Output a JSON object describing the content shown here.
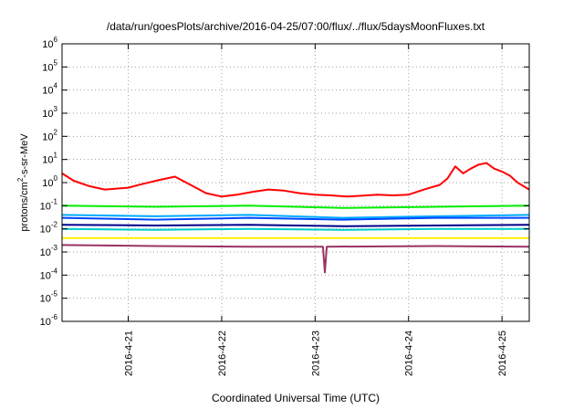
{
  "chart_data": {
    "type": "line",
    "title": "/data/run/goesPlots/archive/2016-04-25/07:00/flux/../flux/5daysMoonFluxes.txt",
    "xlabel": "Coordinated Universal Time (UTC)",
    "ylabel": "protons/cm2-s-sr-MeV",
    "ylabel_parts": [
      "protons/cm",
      "2",
      "-s-sr-MeV"
    ],
    "yscale": "log",
    "ylim": [
      1e-06,
      1000000.0
    ],
    "y_ticks": [
      {
        "value": 1e-06,
        "base": "10",
        "exp": "-6"
      },
      {
        "value": 1e-05,
        "base": "10",
        "exp": "-5"
      },
      {
        "value": 0.0001,
        "base": "10",
        "exp": "-4"
      },
      {
        "value": 0.001,
        "base": "10",
        "exp": "-3"
      },
      {
        "value": 0.01,
        "base": "10",
        "exp": "-2"
      },
      {
        "value": 0.1,
        "base": "10",
        "exp": "-1"
      },
      {
        "value": 1,
        "base": "10",
        "exp": "0"
      },
      {
        "value": 10,
        "base": "10",
        "exp": "1"
      },
      {
        "value": 100,
        "base": "10",
        "exp": "2"
      },
      {
        "value": 1000,
        "base": "10",
        "exp": "3"
      },
      {
        "value": 10000,
        "base": "10",
        "exp": "4"
      },
      {
        "value": 100000,
        "base": "10",
        "exp": "5"
      },
      {
        "value": 1000000,
        "base": "10",
        "exp": "6"
      }
    ],
    "xlim": [
      "2016-04-20T07:00",
      "2016-04-25T07:00"
    ],
    "x_ticks": [
      {
        "value": "2016-04-21T00:00",
        "label": "2016-4-21"
      },
      {
        "value": "2016-04-22T00:00",
        "label": "2016-4-22"
      },
      {
        "value": "2016-04-23T00:00",
        "label": "2016-4-23"
      },
      {
        "value": "2016-04-24T00:00",
        "label": "2016-4-24"
      },
      {
        "value": "2016-04-25T00:00",
        "label": "2016-4-25"
      }
    ],
    "grid": true,
    "series": [
      {
        "color": "#ff0000",
        "x": [
          "2016-04-20T07:00",
          "2016-04-20T10:00",
          "2016-04-20T14:00",
          "2016-04-20T18:00",
          "2016-04-21T00:00",
          "2016-04-21T04:00",
          "2016-04-21T08:00",
          "2016-04-21T12:00",
          "2016-04-21T16:00",
          "2016-04-21T20:00",
          "2016-04-22T00:00",
          "2016-04-22T04:00",
          "2016-04-22T08:00",
          "2016-04-22T12:00",
          "2016-04-22T16:00",
          "2016-04-22T20:00",
          "2016-04-23T00:00",
          "2016-04-23T04:00",
          "2016-04-23T08:00",
          "2016-04-23T12:00",
          "2016-04-23T16:00",
          "2016-04-23T20:00",
          "2016-04-24T00:00",
          "2016-04-24T04:00",
          "2016-04-24T08:00",
          "2016-04-24T10:00",
          "2016-04-24T12:00",
          "2016-04-24T14:00",
          "2016-04-24T16:00",
          "2016-04-24T18:00",
          "2016-04-24T20:00",
          "2016-04-24T22:00",
          "2016-04-25T00:00",
          "2016-04-25T02:00",
          "2016-04-25T04:00",
          "2016-04-25T07:00"
        ],
        "values": [
          2.5,
          1.2,
          0.7,
          0.5,
          0.6,
          0.9,
          1.3,
          1.8,
          0.8,
          0.35,
          0.25,
          0.3,
          0.4,
          0.5,
          0.45,
          0.35,
          0.3,
          0.28,
          0.25,
          0.27,
          0.3,
          0.28,
          0.3,
          0.5,
          0.8,
          1.5,
          5,
          2.5,
          4,
          6,
          7,
          4,
          3,
          2,
          1,
          0.5
        ]
      },
      {
        "color": "#00ee00",
        "x": [
          "2016-04-20T07:00",
          "2016-04-21T07:00",
          "2016-04-22T07:00",
          "2016-04-23T07:00",
          "2016-04-24T07:00",
          "2016-04-25T07:00"
        ],
        "values": [
          0.1,
          0.09,
          0.1,
          0.08,
          0.09,
          0.1
        ]
      },
      {
        "color": "#00aaff",
        "x": [
          "2016-04-20T07:00",
          "2016-04-21T07:00",
          "2016-04-22T07:00",
          "2016-04-23T07:00",
          "2016-04-24T07:00",
          "2016-04-25T07:00"
        ],
        "values": [
          0.04,
          0.035,
          0.04,
          0.03,
          0.035,
          0.04
        ]
      },
      {
        "color": "#0044ff",
        "x": [
          "2016-04-20T07:00",
          "2016-04-21T07:00",
          "2016-04-22T07:00",
          "2016-04-23T07:00",
          "2016-04-24T07:00",
          "2016-04-25T07:00"
        ],
        "values": [
          0.03,
          0.025,
          0.03,
          0.025,
          0.03,
          0.03
        ]
      },
      {
        "color": "#00008b",
        "x": [
          "2016-04-20T07:00",
          "2016-04-21T07:00",
          "2016-04-22T07:00",
          "2016-04-23T07:00",
          "2016-04-24T07:00",
          "2016-04-25T07:00"
        ],
        "values": [
          0.015,
          0.014,
          0.015,
          0.013,
          0.014,
          0.015
        ]
      },
      {
        "color": "#00cccc",
        "x": [
          "2016-04-20T07:00",
          "2016-04-21T07:00",
          "2016-04-22T07:00",
          "2016-04-23T07:00",
          "2016-04-24T07:00",
          "2016-04-25T07:00"
        ],
        "values": [
          0.01,
          0.009,
          0.01,
          0.009,
          0.01,
          0.01
        ]
      },
      {
        "color": "#ffee00",
        "x": [
          "2016-04-20T07:00",
          "2016-04-25T07:00"
        ],
        "values": [
          0.004,
          0.004
        ]
      },
      {
        "color": "#993366",
        "x": [
          "2016-04-20T07:00",
          "2016-04-21T07:00",
          "2016-04-22T07:00",
          "2016-04-23T02:00",
          "2016-04-23T02:30",
          "2016-04-23T03:00",
          "2016-04-24T07:00",
          "2016-04-25T07:00"
        ],
        "values": [
          0.002,
          0.0018,
          0.0017,
          0.0017,
          0.00013,
          0.0017,
          0.0018,
          0.0017
        ]
      }
    ]
  }
}
